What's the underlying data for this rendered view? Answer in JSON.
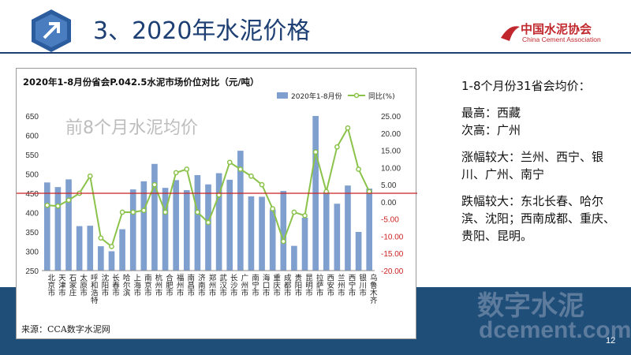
{
  "slide": {
    "title": "3、2020年水泥价格",
    "association_cn": "中国水泥协会",
    "association_en": "China Cement Association",
    "watermark_cn": "数字水泥",
    "watermark_url": "dcement.com",
    "page_number": "12",
    "colors": {
      "title": "#1d3f73",
      "band": "#1f4e79",
      "association": "#c0282e"
    }
  },
  "notes": {
    "heading": "1-8个月份31省会均价：",
    "highest": "最高：西藏",
    "second": "次高：广州",
    "rise": "涨幅较大：兰州、西宁、银川、广州、南宁",
    "fall": "跌幅较大：东北长春、哈尔滨、沈阳；西南成都、重庆、贵阳、昆明。"
  },
  "chart_data": {
    "type": "bar",
    "title": "2020年1-8月份省会P.042.5水泥市场价位对比（元/吨）",
    "overlay_text": "前8个月水泥均价",
    "source": "来源：CCA数字水泥网",
    "categories": [
      "北京市",
      "天津市",
      "石家庄",
      "太原市",
      "呼和浩特",
      "沈阳市",
      "长春市",
      "哈尔滨",
      "上海市",
      "南京市",
      "杭州市",
      "合肥市",
      "福州市",
      "南昌市",
      "济南市",
      "郑州市",
      "武汉市",
      "长沙市",
      "广州市",
      "南宁市",
      "海口市",
      "重庆市",
      "成都市",
      "贵阳市",
      "昆明市",
      "拉萨市",
      "西安市",
      "兰州市",
      "西宁市",
      "银川市",
      "乌鲁木齐"
    ],
    "series": [
      {
        "name": "2020年1-8月份",
        "kind": "bar",
        "axis": "left",
        "color": "#7f9fcf",
        "values": [
          478,
          466,
          486,
          365,
          366,
          313,
          300,
          357,
          460,
          481,
          526,
          464,
          484,
          458,
          497,
          473,
          502,
          485,
          560,
          442,
          441,
          408,
          456,
          314,
          387,
          650,
          453,
          423,
          470,
          350,
          462
        ]
      },
      {
        "name": "同比(%)",
        "kind": "line",
        "axis": "right",
        "color": "#8bc34a",
        "values": [
          -1.0,
          -1.2,
          0.5,
          2.5,
          7.5,
          -10.5,
          -13.0,
          -3.0,
          -3.0,
          -2.5,
          5.0,
          -3.0,
          8.5,
          9.5,
          -3.0,
          -6.0,
          2.0,
          11.5,
          9.5,
          7.5,
          5.0,
          -2.0,
          -11.5,
          -3.0,
          -4.0,
          14.5,
          3.0,
          16.0,
          21.5,
          9.5,
          3.0
        ]
      }
    ],
    "y_left": {
      "min": 250,
      "max": 650,
      "step": 50
    },
    "y_right": {
      "min": -20,
      "max": 25,
      "step": 5
    },
    "reference_line": {
      "axis": "left",
      "value": 450,
      "color": "#cc2222"
    },
    "legend_position": "top-right",
    "grid": false
  }
}
